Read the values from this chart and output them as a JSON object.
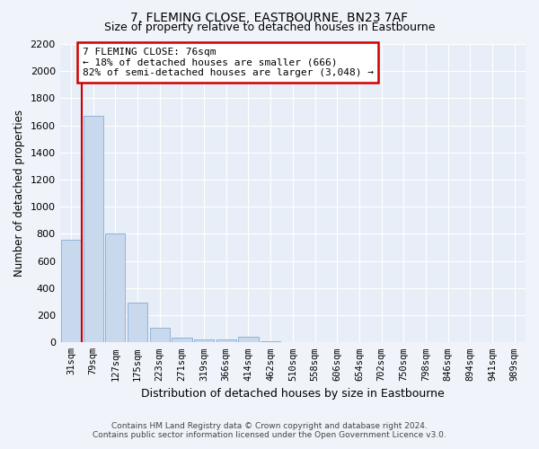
{
  "title": "7, FLEMING CLOSE, EASTBOURNE, BN23 7AF",
  "subtitle": "Size of property relative to detached houses in Eastbourne",
  "xlabel": "Distribution of detached houses by size in Eastbourne",
  "ylabel": "Number of detached properties",
  "categories": [
    "31sqm",
    "79sqm",
    "127sqm",
    "175sqm",
    "223sqm",
    "271sqm",
    "319sqm",
    "366sqm",
    "414sqm",
    "462sqm",
    "510sqm",
    "558sqm",
    "606sqm",
    "654sqm",
    "702sqm",
    "750sqm",
    "798sqm",
    "846sqm",
    "894sqm",
    "941sqm",
    "989sqm"
  ],
  "values": [
    755,
    1670,
    800,
    295,
    110,
    35,
    25,
    20,
    40,
    10,
    5,
    5,
    5,
    5,
    5,
    5,
    5,
    5,
    5,
    5,
    5
  ],
  "bar_color": "#c8d9ee",
  "bar_edge_color": "#8fb4d9",
  "marker_color": "#cc0000",
  "annotation_title": "7 FLEMING CLOSE: 76sqm",
  "annotation_line1": "← 18% of detached houses are smaller (666)",
  "annotation_line2": "82% of semi-detached houses are larger (3,048) →",
  "annotation_box_color": "#ffffff",
  "annotation_box_edge": "#cc0000",
  "ylim": [
    0,
    2200
  ],
  "yticks": [
    0,
    200,
    400,
    600,
    800,
    1000,
    1200,
    1400,
    1600,
    1800,
    2000,
    2200
  ],
  "footer_line1": "Contains HM Land Registry data © Crown copyright and database right 2024.",
  "footer_line2": "Contains public sector information licensed under the Open Government Licence v3.0.",
  "background_color": "#f0f4fa",
  "plot_bg_color": "#e8eef7",
  "title_fontsize": 10,
  "subtitle_fontsize": 9,
  "grid_color": "#ffffff",
  "red_line_x": 0.5
}
